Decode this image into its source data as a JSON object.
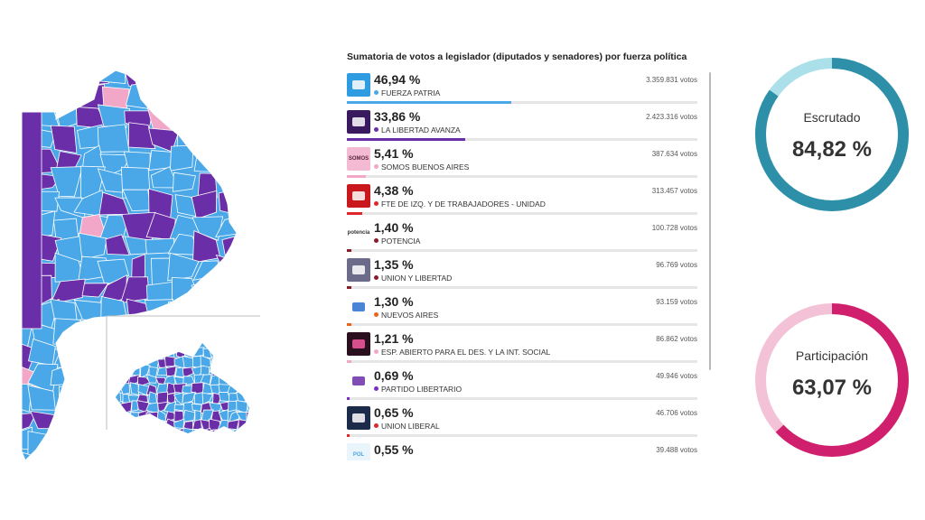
{
  "results": {
    "title": "Sumatoria de votos a legislador (diputados y senadores) por fuerza política"
  },
  "chart_data": [
    {
      "type": "bar",
      "title": "Sumatoria de votos a legislador (diputados y senadores) por fuerza política",
      "categories": [
        "FUERZA PATRIA",
        "LA LIBERTAD AVANZA",
        "SOMOS BUENOS AIRES",
        "FTE DE IZQ. Y DE TRABAJADORES - UNIDAD",
        "POTENCIA",
        "UNION Y LIBERTAD",
        "NUEVOS AIRES",
        "ESP. ABIERTO PARA EL DES. Y LA INT. SOCIAL",
        "PARTIDO LIBERTARIO",
        "UNION LIBERAL",
        ""
      ],
      "values": [
        46.94,
        33.86,
        5.41,
        4.38,
        1.4,
        1.35,
        1.3,
        1.21,
        0.69,
        0.65,
        0.55
      ],
      "ylim": [
        0,
        100
      ],
      "parties": [
        {
          "name": "FUERZA PATRIA",
          "pct_label": "46,94 %",
          "pct": 46.94,
          "votes_label": "3.359.831 votos",
          "color": "#4aa8e8",
          "logo_bg": "#2f9be0",
          "logo_text": "",
          "logo_color": "#ffffff"
        },
        {
          "name": "LA LIBERTAD AVANZA",
          "pct_label": "33,86 %",
          "pct": 33.86,
          "votes_label": "2.423.316 votos",
          "color": "#6a2ea8",
          "logo_bg": "#3a1a5e",
          "logo_text": "",
          "logo_color": "#ffffff"
        },
        {
          "name": "SOMOS BUENOS AIRES",
          "pct_label": "5,41 %",
          "pct": 5.41,
          "votes_label": "387.634 votos",
          "color": "#f2a6c8",
          "logo_bg": "#f4b9d3",
          "logo_text": "SOMOS",
          "logo_color": "#5a2a3a"
        },
        {
          "name": "FTE DE IZQ. Y DE TRABAJADORES - UNIDAD",
          "pct_label": "4,38 %",
          "pct": 4.38,
          "votes_label": "313.457 votos",
          "color": "#e0262b",
          "logo_bg": "#c8181e",
          "logo_text": "",
          "logo_color": "#ffffff"
        },
        {
          "name": "POTENCIA",
          "pct_label": "1,40 %",
          "pct": 1.4,
          "votes_label": "100.728 votos",
          "color": "#8a1c2c",
          "logo_bg": "#ffffff",
          "logo_text": "potencia",
          "logo_color": "#333333"
        },
        {
          "name": "UNION Y LIBERTAD",
          "pct_label": "1,35 %",
          "pct": 1.35,
          "votes_label": "96.769 votos",
          "color": "#8a1c2c",
          "logo_bg": "#6c6c8a",
          "logo_text": "",
          "logo_color": "#ffffff"
        },
        {
          "name": "NUEVOS AIRES",
          "pct_label": "1,30 %",
          "pct": 1.3,
          "votes_label": "93.159 votos",
          "color": "#e8651a",
          "logo_bg": "#ffffff",
          "logo_text": "",
          "logo_color": "#2a6fd0"
        },
        {
          "name": "ESP. ABIERTO PARA EL DES. Y LA INT. SOCIAL",
          "pct_label": "1,21 %",
          "pct": 1.21,
          "votes_label": "86.862 votos",
          "color": "#f2a6c8",
          "logo_bg": "#2a0f1e",
          "logo_text": "",
          "logo_color": "#f25aa0"
        },
        {
          "name": "PARTIDO LIBERTARIO",
          "pct_label": "0,69 %",
          "pct": 0.69,
          "votes_label": "49.946 votos",
          "color": "#7a2ec0",
          "logo_bg": "#ffffff",
          "logo_text": "",
          "logo_color": "#6a2ea8"
        },
        {
          "name": "UNION LIBERAL",
          "pct_label": "0,65 %",
          "pct": 0.65,
          "votes_label": "46.706 votos",
          "color": "#e0262b",
          "logo_bg": "#1c2b4a",
          "logo_text": "",
          "logo_color": "#ffffff"
        },
        {
          "name": "",
          "pct_label": "0,55 %",
          "pct": 0.55,
          "votes_label": "39.488 votos",
          "color": "#4aa8e8",
          "logo_bg": "#eaf4fb",
          "logo_text": "POL",
          "logo_color": "#4aa8e8"
        }
      ]
    },
    {
      "type": "pie",
      "title": "Escrutado",
      "value_label": "84,82 %",
      "value": 84.82,
      "color": "#2e8fa9",
      "track_color": "#abe0ea"
    },
    {
      "type": "pie",
      "title": "Participación",
      "value_label": "63,07 %",
      "value": 63.07,
      "color": "#d01f6c",
      "track_color": "#f4c2d7"
    }
  ],
  "map": {
    "colors": {
      "fuerza_patria": "#4aa8e8",
      "libertad_avanza": "#6a2ea8",
      "somos": "#f2a6c8",
      "border": "#ffffff"
    }
  }
}
